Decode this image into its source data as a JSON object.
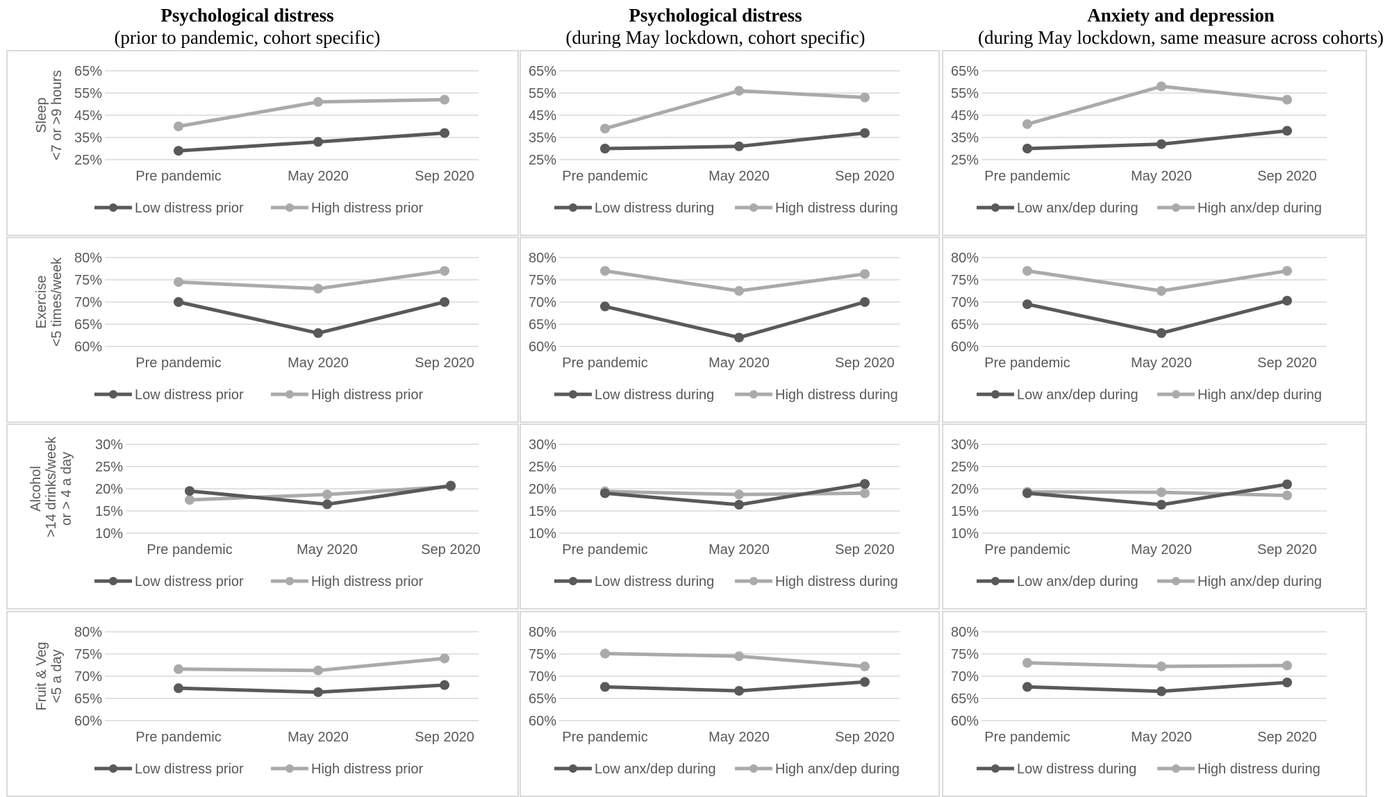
{
  "column_titles": [
    {
      "line1": "Psychological distress",
      "line2": "(prior to pandemic, cohort specific)"
    },
    {
      "line1": "Psychological distress",
      "line2": "(during May lockdown, cohort specific)"
    },
    {
      "line1": "Anxiety and depression",
      "line2": "(during May lockdown, same measure across cohorts)"
    }
  ],
  "row_labels": [
    [
      "Sleep",
      "<7 or >9 hours"
    ],
    [
      "Exercise",
      "<5 times/week"
    ],
    [
      "Alcohol",
      ">14 drinks/week",
      "or > 4 a day"
    ],
    [
      "Fruit & Veg",
      "<5 a day"
    ]
  ],
  "colors": {
    "low": "#595959",
    "high": "#aaaaaa",
    "grid": "#d9d9d9",
    "text": "#595959"
  },
  "chart_data": [
    {
      "type": "line",
      "row": 0,
      "col": 0,
      "categories": [
        "Pre pandemic",
        "May 2020",
        "Sep 2020"
      ],
      "yticks": [
        "65%",
        "55%",
        "45%",
        "35%",
        "25%"
      ],
      "ylim": [
        0.25,
        0.65
      ],
      "series": [
        {
          "name": "Low distress prior",
          "values": [
            0.29,
            0.33,
            0.37
          ]
        },
        {
          "name": "High distress prior",
          "values": [
            0.4,
            0.51,
            0.52
          ]
        }
      ]
    },
    {
      "type": "line",
      "row": 0,
      "col": 1,
      "categories": [
        "Pre pandemic",
        "May 2020",
        "Sep 2020"
      ],
      "yticks": [
        "65%",
        "55%",
        "45%",
        "35%",
        "25%"
      ],
      "ylim": [
        0.25,
        0.65
      ],
      "series": [
        {
          "name": "Low distress during",
          "values": [
            0.3,
            0.31,
            0.37
          ]
        },
        {
          "name": "High distress during",
          "values": [
            0.39,
            0.56,
            0.53
          ]
        }
      ]
    },
    {
      "type": "line",
      "row": 0,
      "col": 2,
      "categories": [
        "Pre pandemic",
        "May 2020",
        "Sep 2020"
      ],
      "yticks": [
        "65%",
        "55%",
        "45%",
        "35%",
        "25%"
      ],
      "ylim": [
        0.25,
        0.65
      ],
      "series": [
        {
          "name": "Low anx/dep during",
          "values": [
            0.3,
            0.32,
            0.38
          ]
        },
        {
          "name": "High anx/dep during",
          "values": [
            0.41,
            0.58,
            0.52
          ]
        }
      ]
    },
    {
      "type": "line",
      "row": 1,
      "col": 0,
      "categories": [
        "Pre pandemic",
        "May 2020",
        "Sep 2020"
      ],
      "yticks": [
        "80%",
        "75%",
        "70%",
        "65%",
        "60%"
      ],
      "ylim": [
        0.6,
        0.8
      ],
      "series": [
        {
          "name": "Low distress prior",
          "values": [
            0.7,
            0.63,
            0.7
          ]
        },
        {
          "name": "High distress prior",
          "values": [
            0.745,
            0.73,
            0.77
          ]
        }
      ]
    },
    {
      "type": "line",
      "row": 1,
      "col": 1,
      "categories": [
        "Pre pandemic",
        "May 2020",
        "Sep 2020"
      ],
      "yticks": [
        "80%",
        "75%",
        "70%",
        "65%",
        "60%"
      ],
      "ylim": [
        0.6,
        0.8
      ],
      "series": [
        {
          "name": "Low distress during",
          "values": [
            0.69,
            0.62,
            0.7
          ]
        },
        {
          "name": "High distress during",
          "values": [
            0.77,
            0.725,
            0.763
          ]
        }
      ]
    },
    {
      "type": "line",
      "row": 1,
      "col": 2,
      "categories": [
        "Pre pandemic",
        "May 2020",
        "Sep 2020"
      ],
      "yticks": [
        "80%",
        "75%",
        "70%",
        "65%",
        "60%"
      ],
      "ylim": [
        0.6,
        0.8
      ],
      "series": [
        {
          "name": "Low anx/dep during",
          "values": [
            0.695,
            0.63,
            0.703
          ]
        },
        {
          "name": "High anx/dep during",
          "values": [
            0.77,
            0.725,
            0.77
          ]
        }
      ]
    },
    {
      "type": "line",
      "row": 2,
      "col": 0,
      "categories": [
        "Pre pandemic",
        "May 2020",
        "Sep 2020"
      ],
      "yticks": [
        "30%",
        "25%",
        "20%",
        "15%",
        "10%"
      ],
      "ylim": [
        0.1,
        0.3
      ],
      "series": [
        {
          "name": "Low distress prior",
          "values": [
            0.195,
            0.165,
            0.207
          ]
        },
        {
          "name": "High distress prior",
          "values": [
            0.175,
            0.187,
            0.205
          ]
        }
      ]
    },
    {
      "type": "line",
      "row": 2,
      "col": 1,
      "categories": [
        "Pre pandemic",
        "May 2020",
        "Sep 2020"
      ],
      "yticks": [
        "30%",
        "25%",
        "20%",
        "15%",
        "10%"
      ],
      "ylim": [
        0.1,
        0.3
      ],
      "series": [
        {
          "name": "Low distress during",
          "values": [
            0.19,
            0.164,
            0.211
          ]
        },
        {
          "name": "High distress during",
          "values": [
            0.194,
            0.187,
            0.19
          ]
        }
      ]
    },
    {
      "type": "line",
      "row": 2,
      "col": 2,
      "categories": [
        "Pre pandemic",
        "May 2020",
        "Sep 2020"
      ],
      "yticks": [
        "30%",
        "25%",
        "20%",
        "15%",
        "10%"
      ],
      "ylim": [
        0.1,
        0.3
      ],
      "series": [
        {
          "name": "Low anx/dep during",
          "values": [
            0.19,
            0.164,
            0.21
          ]
        },
        {
          "name": "High anx/dep during",
          "values": [
            0.193,
            0.192,
            0.185
          ]
        }
      ]
    },
    {
      "type": "line",
      "row": 3,
      "col": 0,
      "categories": [
        "Pre pandemic",
        "May 2020",
        "Sep 2020"
      ],
      "yticks": [
        "80%",
        "75%",
        "70%",
        "65%",
        "60%"
      ],
      "ylim": [
        0.6,
        0.8
      ],
      "series": [
        {
          "name": "Low distress prior",
          "values": [
            0.673,
            0.664,
            0.68
          ]
        },
        {
          "name": "High distress prior",
          "values": [
            0.716,
            0.713,
            0.74
          ]
        }
      ]
    },
    {
      "type": "line",
      "row": 3,
      "col": 1,
      "categories": [
        "Pre pandemic",
        "May 2020",
        "Sep 2020"
      ],
      "yticks": [
        "80%",
        "75%",
        "70%",
        "65%",
        "60%"
      ],
      "ylim": [
        0.6,
        0.8
      ],
      "series": [
        {
          "name": "Low anx/dep during",
          "values": [
            0.676,
            0.667,
            0.687
          ]
        },
        {
          "name": "High anx/dep during",
          "values": [
            0.751,
            0.745,
            0.722
          ]
        }
      ]
    },
    {
      "type": "line",
      "row": 3,
      "col": 2,
      "categories": [
        "Pre pandemic",
        "May 2020",
        "Sep 2020"
      ],
      "yticks": [
        "80%",
        "75%",
        "70%",
        "65%",
        "60%"
      ],
      "ylim": [
        0.6,
        0.8
      ],
      "series": [
        {
          "name": "Low distress during",
          "values": [
            0.676,
            0.666,
            0.686
          ]
        },
        {
          "name": "High distress during",
          "values": [
            0.73,
            0.722,
            0.724
          ]
        }
      ]
    }
  ]
}
